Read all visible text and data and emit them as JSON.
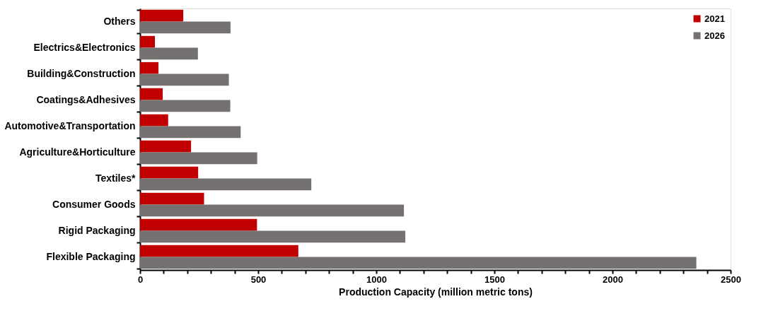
{
  "chart_data": {
    "type": "bar",
    "orientation": "horizontal",
    "xlabel": "Production Capacity (million metric tons)",
    "categories": [
      "Others",
      "Electrics&Electronics",
      "Building&Construction",
      "Coatings&Adhesives",
      "Automotive&Transportation",
      "Agriculture&Horticulture",
      "Textiles*",
      "Consumer Goods",
      "Rigid Packaging",
      "Flexible Packaging"
    ],
    "series": [
      {
        "name": "2021",
        "color": "#c00000",
        "values": [
          183,
          63,
          78,
          96,
          119,
          216,
          246,
          271,
          495,
          670
        ]
      },
      {
        "name": "2026",
        "color": "#767171",
        "values": [
          383,
          245,
          376,
          382,
          426,
          496,
          725,
          1117,
          1123,
          2355
        ]
      }
    ],
    "xlim": [
      0,
      2500
    ],
    "xticks": [
      0,
      {
        "value": 100,
        "label": null
      },
      {
        "value": 200,
        "label": null
      },
      {
        "value": 300,
        "label": null
      },
      {
        "value": 400,
        "label": null
      },
      500,
      {
        "value": 600,
        "label": null
      },
      {
        "value": 700,
        "label": null
      },
      {
        "value": 800,
        "label": null
      },
      {
        "value": 900,
        "label": null
      },
      1000,
      {
        "value": 1100,
        "label": null
      },
      {
        "value": 1200,
        "label": null
      },
      {
        "value": 1300,
        "label": null
      },
      {
        "value": 1400,
        "label": null
      },
      1500,
      {
        "value": 1600,
        "label": null
      },
      {
        "value": 1700,
        "label": null
      },
      {
        "value": 1800,
        "label": null
      },
      {
        "value": 1900,
        "label": null
      },
      2000,
      {
        "value": 2100,
        "label": null
      },
      {
        "value": 2200,
        "label": null
      },
      {
        "value": 2300,
        "label": null
      },
      {
        "value": 2400,
        "label": null
      },
      2500
    ],
    "legend": "top right",
    "grid": false
  }
}
